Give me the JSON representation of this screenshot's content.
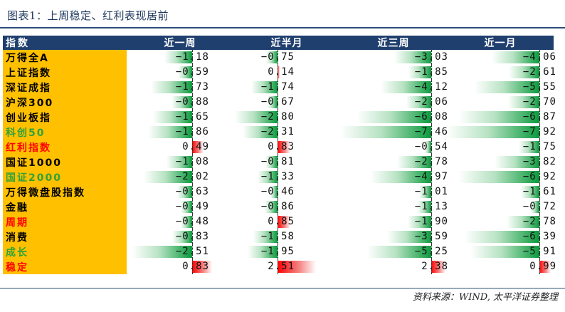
{
  "title": "图表1：上周稳定、红利表现居前",
  "source": "资料来源：WIND, 太平洋证券整理",
  "colors": {
    "header_bg": "#1f3f6e",
    "name_bg": "#ffc000",
    "negative_bar": "#0a9a3c",
    "positive_bar": "#ff0000"
  },
  "chart_data": {
    "type": "table",
    "columns": [
      "指数",
      "近一周",
      "近半月",
      "近三周",
      "近一月"
    ],
    "rows": [
      {
        "name": "万得全A",
        "color": "black",
        "values": [
          -1.18,
          -0.75,
          -3.03,
          -4.06
        ]
      },
      {
        "name": "上证指数",
        "color": "black",
        "values": [
          -0.59,
          0.14,
          -1.85,
          -2.61
        ]
      },
      {
        "name": "深证成指",
        "color": "black",
        "values": [
          -1.73,
          -1.74,
          -4.12,
          -5.55
        ]
      },
      {
        "name": "沪深300",
        "color": "black",
        "values": [
          -0.88,
          -0.67,
          -2.06,
          -2.7
        ]
      },
      {
        "name": "创业板指",
        "color": "black",
        "values": [
          -1.65,
          -2.8,
          -6.08,
          -6.87
        ]
      },
      {
        "name": "科创50",
        "color": "green",
        "values": [
          -1.86,
          -2.31,
          -7.46,
          -7.92
        ]
      },
      {
        "name": "红利指数",
        "color": "red",
        "values": [
          0.49,
          0.83,
          -0.54,
          -1.75
        ]
      },
      {
        "name": "国证1000",
        "color": "black",
        "values": [
          -1.08,
          -0.81,
          -2.78,
          -3.82
        ]
      },
      {
        "name": "国证2000",
        "color": "green",
        "values": [
          -2.02,
          -1.33,
          -4.97,
          -6.92
        ]
      },
      {
        "name": "万得微盘股指数",
        "color": "black",
        "values": [
          -0.63,
          -0.46,
          -1.01,
          -1.61
        ]
      },
      {
        "name": "金融",
        "color": "black",
        "values": [
          -0.49,
          -0.86,
          -1.13,
          -0.72
        ]
      },
      {
        "name": "周期",
        "color": "red",
        "values": [
          -0.48,
          0.85,
          -1.9,
          -2.78
        ]
      },
      {
        "name": "消费",
        "color": "black",
        "values": [
          -0.83,
          -1.58,
          -3.59,
          -6.39
        ]
      },
      {
        "name": "成长",
        "color": "green",
        "values": [
          -2.51,
          -1.95,
          -5.25,
          -5.91
        ]
      },
      {
        "name": "稳定",
        "color": "red",
        "values": [
          0.83,
          2.51,
          2.38,
          0.99
        ]
      }
    ]
  }
}
